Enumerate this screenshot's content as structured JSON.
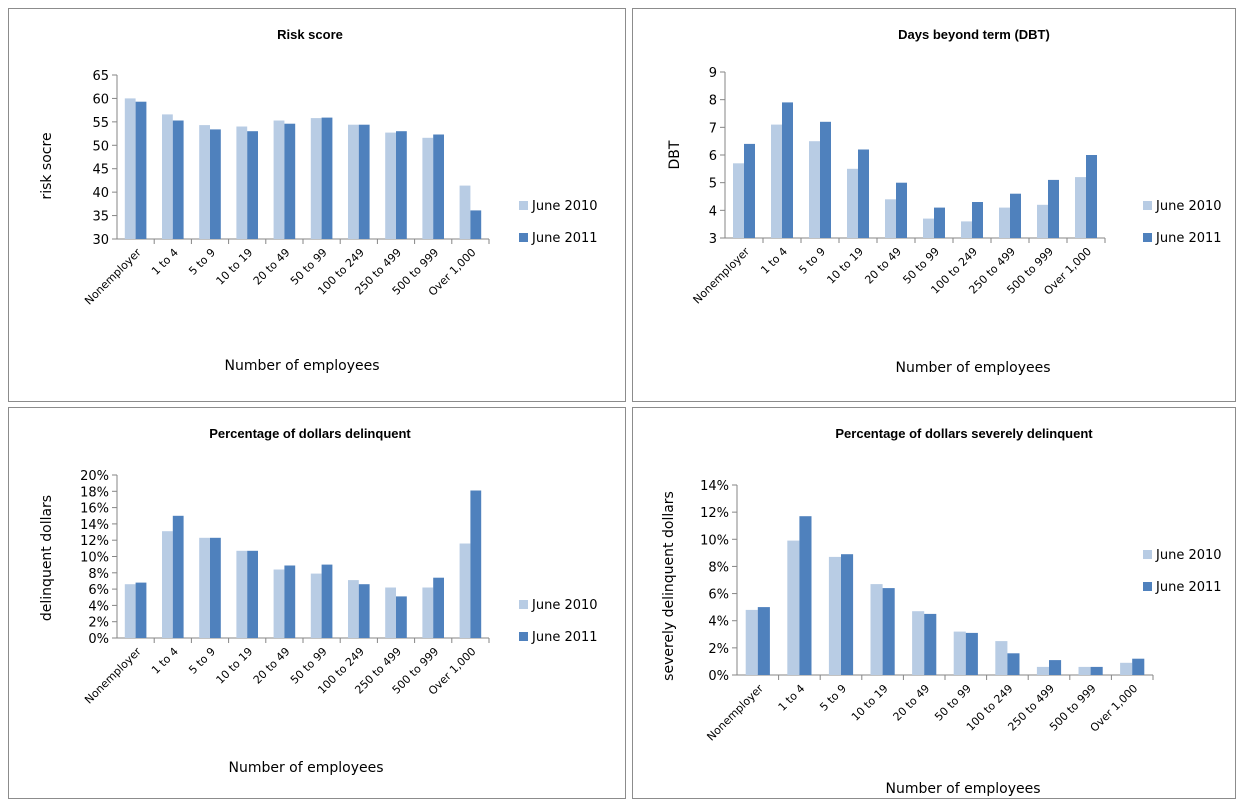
{
  "colors": {
    "june_2010": "#b8cce4",
    "june_2011": "#4f81bd",
    "axis": "#868686",
    "panel_border": "#8c8c8c"
  },
  "chart_data": [
    {
      "type": "bar",
      "title": "Risk score",
      "xlabel": "Number of employees",
      "ylabel": "risk socre",
      "ylim": [
        30,
        65
      ],
      "ytick_step": 5,
      "ytick_labels": [
        "30",
        "35",
        "40",
        "45",
        "50",
        "55",
        "60",
        "65"
      ],
      "grid": false,
      "legend_position": "right",
      "categories": [
        "Nonemployer",
        "1 to 4",
        "5 to 9",
        "10 to 19",
        "20 to 49",
        "50 to 99",
        "100 to 249",
        "250 to 499",
        "500 to 999",
        "Over 1,000"
      ],
      "series": [
        {
          "name": "June 2010",
          "values": [
            60.0,
            56.6,
            54.3,
            54.0,
            55.3,
            55.8,
            54.4,
            52.7,
            51.6,
            41.4
          ]
        },
        {
          "name": "June 2011",
          "values": [
            59.3,
            55.3,
            53.4,
            53.0,
            54.6,
            55.9,
            54.4,
            53.0,
            52.3,
            36.1
          ]
        }
      ]
    },
    {
      "type": "bar",
      "title": "Days beyond term (DBT)",
      "xlabel": "Number of employees",
      "ylabel": "DBT",
      "ylim": [
        3,
        9
      ],
      "ytick_step": 1,
      "ytick_labels": [
        "3",
        "4",
        "5",
        "6",
        "7",
        "8",
        "9"
      ],
      "grid": false,
      "legend_position": "right",
      "categories": [
        "Nonemployer",
        "1 to 4",
        "5 to 9",
        "10 to 19",
        "20 to 49",
        "50 to 99",
        "100 to 249",
        "250 to 499",
        "500 to 999",
        "Over 1,000"
      ],
      "series": [
        {
          "name": "June 2010",
          "values": [
            5.7,
            7.1,
            6.5,
            5.5,
            4.4,
            3.7,
            3.6,
            4.1,
            4.2,
            5.2
          ]
        },
        {
          "name": "June 2011",
          "values": [
            6.4,
            7.9,
            7.2,
            6.2,
            5.0,
            4.1,
            4.3,
            4.6,
            5.1,
            6.0
          ]
        }
      ]
    },
    {
      "type": "bar",
      "title": "Percentage of dollars delinquent",
      "xlabel": "Number of employees",
      "ylabel": "delinquent dollars",
      "ylim": [
        0,
        20
      ],
      "ytick_step": 2,
      "ytick_labels": [
        "0%",
        "2%",
        "4%",
        "6%",
        "8%",
        "10%",
        "12%",
        "14%",
        "16%",
        "18%",
        "20%"
      ],
      "grid": false,
      "legend_position": "right",
      "categories": [
        "Nonemployer",
        "1 to 4",
        "5 to 9",
        "10 to 19",
        "20 to 49",
        "50 to 99",
        "100 to 249",
        "250 to 499",
        "500 to 999",
        "Over 1,000"
      ],
      "series": [
        {
          "name": "June 2010",
          "values": [
            6.6,
            13.1,
            12.3,
            10.7,
            8.4,
            7.9,
            7.1,
            6.2,
            6.2,
            11.6
          ]
        },
        {
          "name": "June 2011",
          "values": [
            6.8,
            15.0,
            12.3,
            10.7,
            8.9,
            9.0,
            6.6,
            5.1,
            7.4,
            18.1
          ]
        }
      ]
    },
    {
      "type": "bar",
      "title": "Percentage of dollars severely delinquent",
      "xlabel": "Number of employees",
      "ylabel": "severely delinquent dollars",
      "ylim": [
        0,
        14
      ],
      "ytick_step": 2,
      "ytick_labels": [
        "0%",
        "2%",
        "4%",
        "6%",
        "8%",
        "10%",
        "12%",
        "14%"
      ],
      "grid": false,
      "legend_position": "right",
      "categories": [
        "Nonemployer",
        "1 to 4",
        "5 to 9",
        "10 to 19",
        "20 to 49",
        "50 to 99",
        "100 to 249",
        "250 to 499",
        "500 to 999",
        "Over 1,000"
      ],
      "series": [
        {
          "name": "June 2010",
          "values": [
            4.8,
            9.9,
            8.7,
            6.7,
            4.7,
            3.2,
            2.5,
            0.6,
            0.6,
            0.9
          ]
        },
        {
          "name": "June 2011",
          "values": [
            5.0,
            11.7,
            8.9,
            6.4,
            4.5,
            3.1,
            1.6,
            1.1,
            0.6,
            1.2
          ]
        }
      ]
    }
  ]
}
